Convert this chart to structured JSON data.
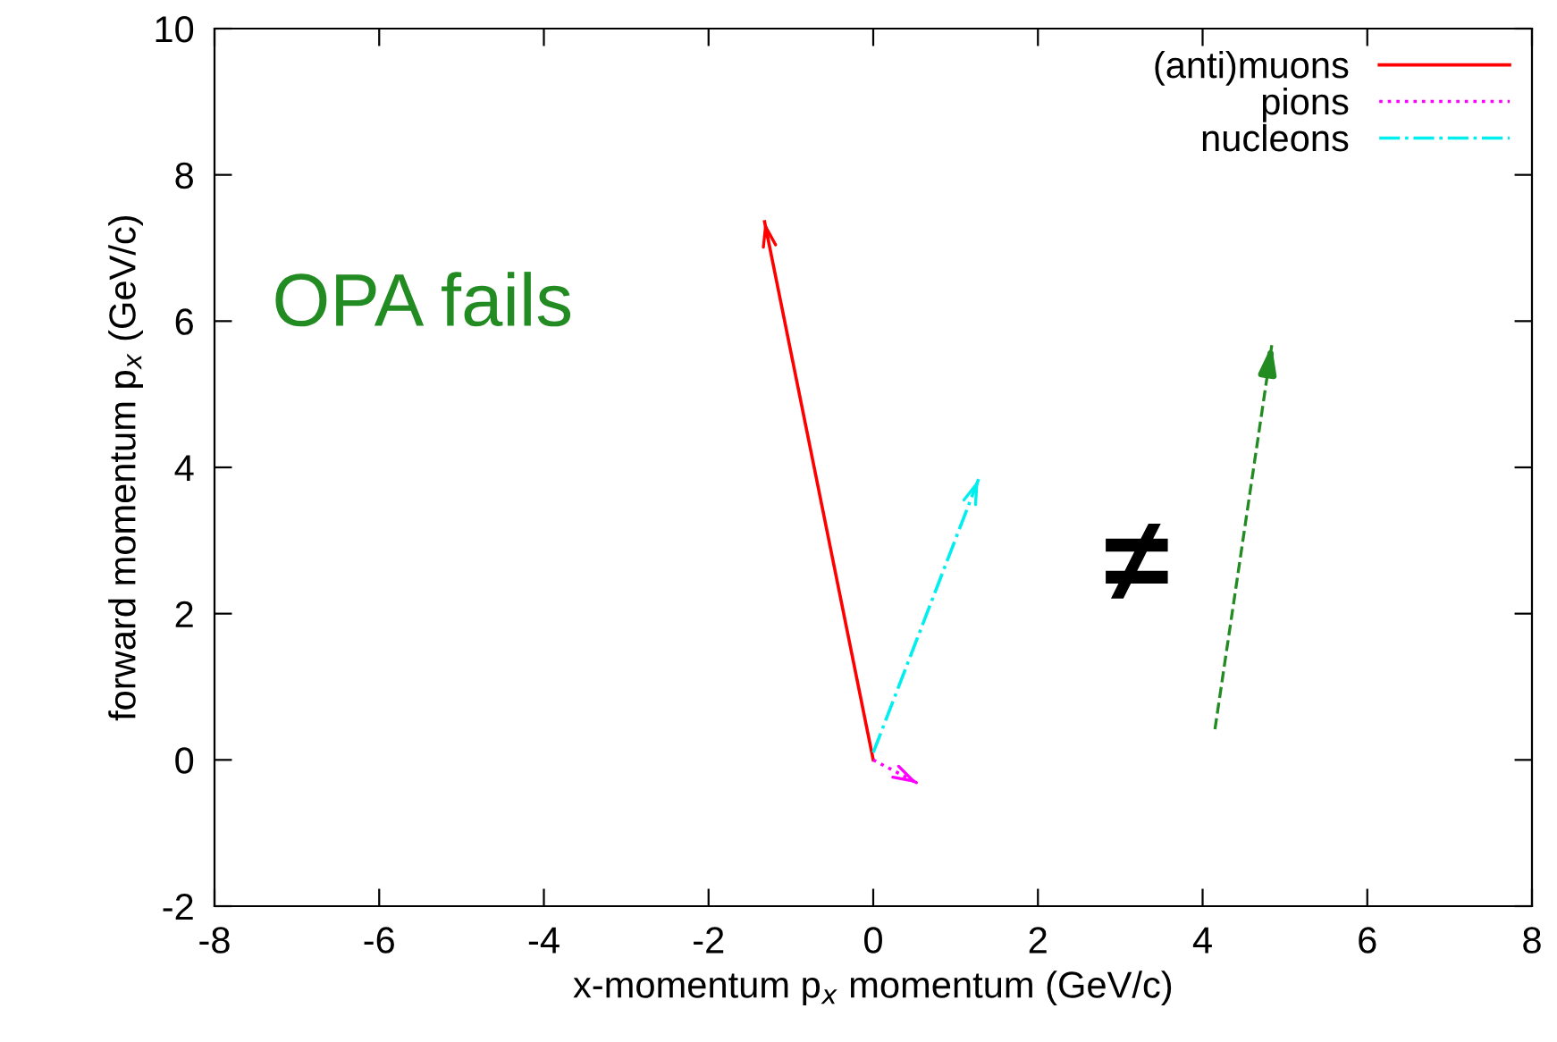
{
  "chart_data": {
    "type": "line",
    "xlabel": "x-momentum p$_{x}$ momentum (GeV/c)",
    "ylabel": "forward momentum p$_{x}$ (GeV/c)",
    "series": [
      {
        "name": "(anti)muons",
        "color": "#ff0000",
        "line_style": "solid",
        "x": [
          0,
          -1.32
        ],
        "values": [
          0,
          7.36
        ]
      },
      {
        "name": "pions",
        "color": "#ff00ff",
        "line_style": "dotted",
        "x": [
          0,
          0.54
        ],
        "values": [
          0,
          -0.32
        ]
      },
      {
        "name": "nucleons",
        "color": "#00eeee",
        "line_style": "dashdot",
        "x": [
          0,
          1.28
        ],
        "values": [
          0.1,
          3.84
        ]
      },
      {
        "color": "#228b22",
        "line_style": "dashed",
        "x": [
          4.15,
          4.84
        ],
        "values": [
          0.42,
          5.67
        ]
      }
    ],
    "annotations": [
      "OPA fails",
      "≠"
    ],
    "xlim": [
      -8,
      8
    ],
    "ylim": [
      -2,
      10
    ],
    "xticks": [
      -8,
      -6,
      -4,
      -2,
      0,
      2,
      4,
      6,
      8
    ],
    "yticks": [
      -2,
      0,
      2,
      4,
      6,
      8,
      10
    ],
    "grid": false,
    "legend": "top right"
  }
}
